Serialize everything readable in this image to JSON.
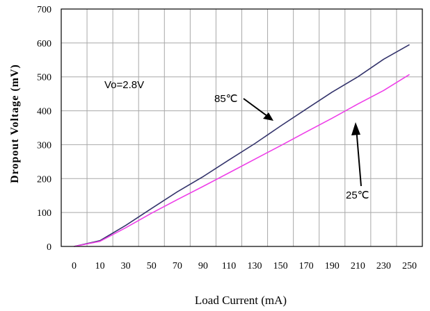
{
  "chart_data": {
    "type": "line",
    "xlabel": "Load Current (mA)",
    "ylabel": "Dropout Voltage (mV)",
    "x_ticks": [
      "0",
      "10",
      "30",
      "50",
      "70",
      "90",
      "110",
      "130",
      "150",
      "170",
      "190",
      "210",
      "230",
      "250"
    ],
    "y_ticks": [
      "0",
      "100",
      "200",
      "300",
      "400",
      "500",
      "600",
      "700"
    ],
    "ylim": [
      0,
      700
    ],
    "grid": true,
    "annotations": {
      "condition": "Vo=2.8V",
      "label_85": "85℃",
      "label_25": "25℃"
    },
    "series": [
      {
        "name": "85℃",
        "color": "#33336b",
        "x": [
          0,
          10,
          30,
          50,
          70,
          90,
          110,
          130,
          150,
          170,
          190,
          210,
          230,
          250
        ],
        "values": [
          0,
          17,
          62,
          112,
          161,
          206,
          255,
          303,
          355,
          405,
          455,
          500,
          552,
          595
        ]
      },
      {
        "name": "25℃",
        "color": "#ee3ee8",
        "x": [
          0,
          10,
          30,
          50,
          70,
          90,
          110,
          130,
          150,
          170,
          190,
          210,
          230,
          250
        ],
        "values": [
          0,
          15,
          55,
          98,
          138,
          177,
          217,
          257,
          297,
          338,
          378,
          420,
          460,
          507
        ]
      }
    ]
  }
}
